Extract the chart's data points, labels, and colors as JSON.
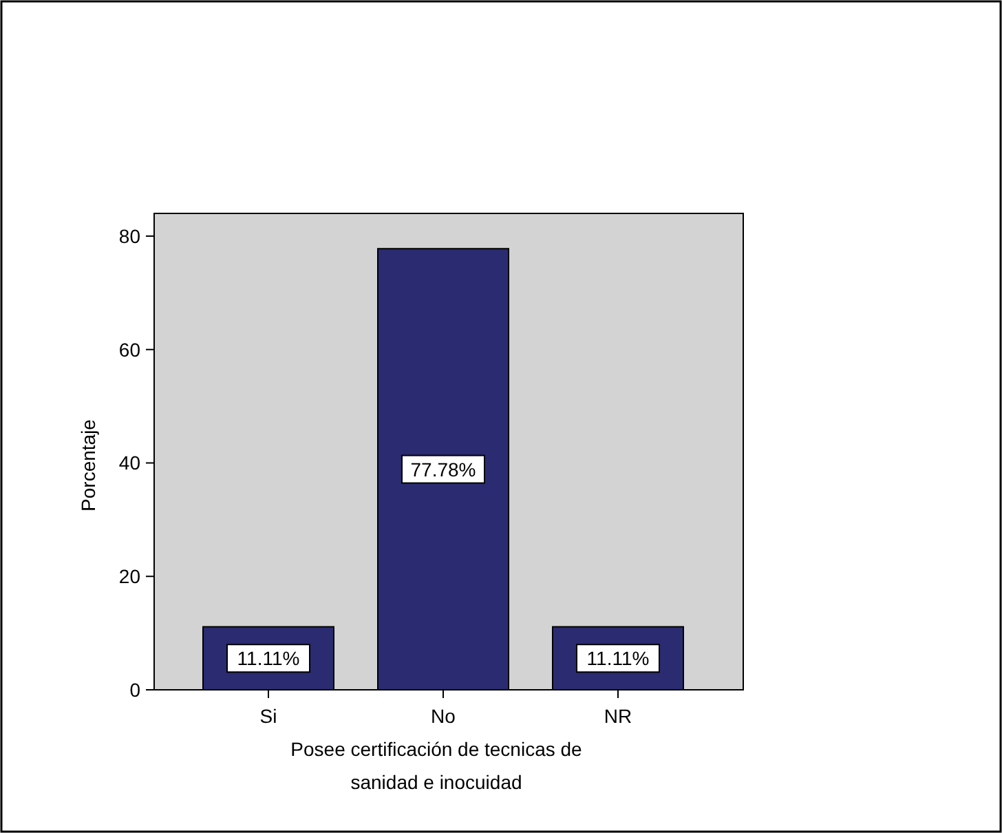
{
  "chart_data": {
    "type": "bar",
    "xlabel": "Posee certificación de tecnicas de sanidad e inocuidad",
    "ylabel": "Porcentaje",
    "categories": [
      "Si",
      "No",
      "NR"
    ],
    "values": [
      11.11,
      77.78,
      11.11
    ],
    "value_labels": [
      "11.11%",
      "77.78%",
      "11.11%"
    ],
    "color": "#2b2b72",
    "ylim": [
      0,
      84
    ],
    "yticks": [
      0,
      20,
      40,
      60,
      80
    ],
    "grid": false
  }
}
